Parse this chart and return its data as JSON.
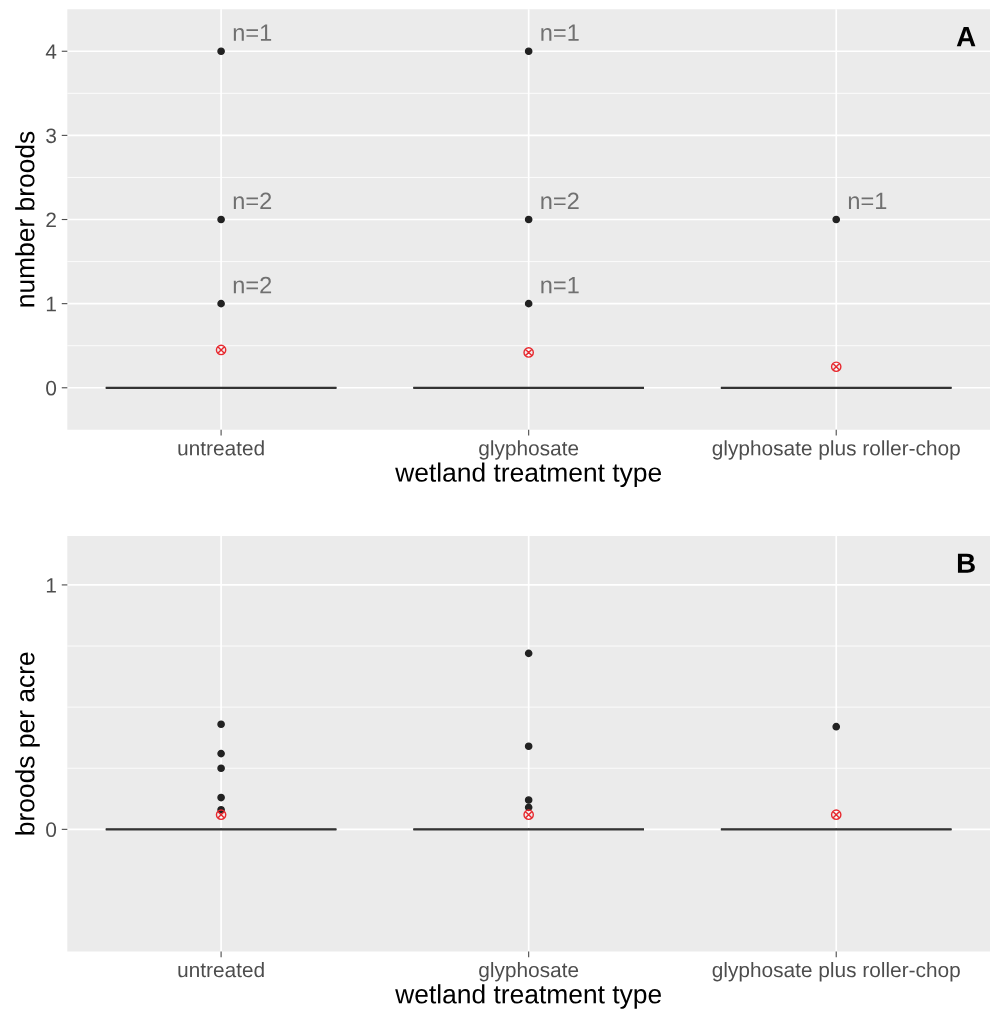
{
  "chart_data": [
    {
      "type": "box",
      "xlabel": "wetland treatment type",
      "ylabel": "number broods",
      "categories": [
        "untreated",
        "glyphosate",
        "glyphosate plus roller-chop"
      ],
      "boxes": [
        {
          "low": 0,
          "q1": 0,
          "median": 0,
          "q3": 0,
          "high": 0,
          "outliers": [
            1,
            2,
            4
          ]
        },
        {
          "low": 0,
          "q1": 0,
          "median": 0,
          "q3": 0,
          "high": 0,
          "outliers": [
            1,
            2,
            4
          ]
        },
        {
          "low": 0,
          "q1": 0,
          "median": 0,
          "q3": 0,
          "high": 0,
          "outliers": [
            2
          ]
        }
      ],
      "series": [
        {
          "type": "scatter",
          "color": "#e8292f",
          "marker": "cross",
          "x": [
            "untreated",
            "glyphosate",
            "glyphosate plus roller-chop"
          ],
          "values": [
            0.45,
            0.42,
            0.25
          ]
        }
      ],
      "ylim": [
        -0.5,
        4.5
      ],
      "yticks": [
        0,
        1,
        2,
        3,
        4,
        {
          "value": 0.5,
          "label": null
        },
        {
          "value": 1.5,
          "label": null
        },
        {
          "value": 2.5,
          "label": null
        },
        {
          "value": 3.5,
          "label": null
        }
      ],
      "grid": true,
      "annotations": [
        "A",
        "n=2",
        "n=2",
        "n=1",
        "n=1",
        "n=2",
        "n=1",
        "n=1"
      ]
    },
    {
      "type": "box",
      "xlabel": "wetland treatment type",
      "ylabel": "broods per acre",
      "categories": [
        "untreated",
        "glyphosate",
        "glyphosate plus roller-chop"
      ],
      "boxes": [
        {
          "low": 0,
          "q1": 0,
          "median": 0,
          "q3": 0,
          "high": 0,
          "outliers": [
            0.08,
            0.13,
            0.25,
            0.31,
            0.43
          ]
        },
        {
          "low": 0,
          "q1": 0,
          "median": 0,
          "q3": 0,
          "high": 0,
          "outliers": [
            0.09,
            0.12,
            0.34,
            0.72
          ]
        },
        {
          "low": 0,
          "q1": 0,
          "median": 0,
          "q3": 0,
          "high": 0,
          "outliers": [
            0.42
          ]
        }
      ],
      "series": [
        {
          "type": "scatter",
          "color": "#e8292f",
          "marker": "cross",
          "x": [
            "untreated",
            "glyphosate",
            "glyphosate plus roller-chop"
          ],
          "values": [
            0.06,
            0.06,
            0.06
          ]
        }
      ],
      "ylim": [
        -0.5,
        1.2
      ],
      "yticks": [
        0,
        1,
        {
          "value": 0.25,
          "label": null
        },
        {
          "value": 0.5,
          "label": null
        },
        {
          "value": 0.75,
          "label": null
        }
      ],
      "grid": true,
      "annotations": [
        "B"
      ]
    }
  ]
}
